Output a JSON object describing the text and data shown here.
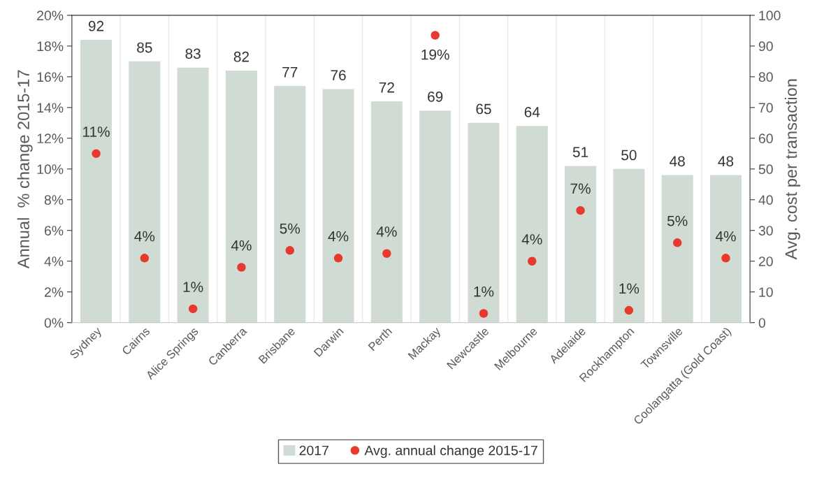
{
  "chart_data": {
    "type": "bar",
    "categories": [
      "Sydney",
      "Cairns",
      "Alice Springs",
      "Canberra",
      "Brisbane",
      "Darwin",
      "Perth",
      "Mackay",
      "Newcastle",
      "Melbourne",
      "Adelaide",
      "Rockhampton",
      "Townsville",
      "Coolangatta (Gold Coast)"
    ],
    "ylabel": "Annual  % change 2015-17",
    "y2label": "Avg. cost per transaction",
    "series": [
      {
        "name": "2017",
        "axis": "y2",
        "color": "#d0dcd3",
        "values": [
          92,
          85,
          83,
          82,
          77,
          76,
          72,
          69,
          65,
          64,
          51,
          50,
          48,
          48
        ],
        "value_labels": [
          "92",
          "85",
          "83",
          "82",
          "77",
          "76",
          "72",
          "69",
          "65",
          "64",
          "51",
          "50",
          "48",
          "48"
        ]
      },
      {
        "name": "Avg. annual change 2015-17",
        "type": "scatter",
        "axis": "y",
        "color": "#e8392f",
        "marker": "circle",
        "values": [
          11.0,
          4.2,
          0.9,
          3.6,
          4.7,
          4.2,
          4.5,
          18.7,
          0.6,
          4.0,
          7.3,
          0.8,
          5.2,
          4.2
        ],
        "value_labels": [
          "11%",
          "4%",
          "1%",
          "4%",
          "5%",
          "4%",
          "4%",
          "19%",
          "1%",
          "4%",
          "7%",
          "1%",
          "5%",
          "4%"
        ]
      }
    ],
    "ylim": [
      0,
      20
    ],
    "yticks": [
      {
        "value": 0,
        "label": "0%"
      },
      {
        "value": 2,
        "label": "2%"
      },
      {
        "value": 4,
        "label": "4%"
      },
      {
        "value": 6,
        "label": "6%"
      },
      {
        "value": 8,
        "label": "8%"
      },
      {
        "value": 10,
        "label": "10%"
      },
      {
        "value": 12,
        "label": "12%"
      },
      {
        "value": 14,
        "label": "14%"
      },
      {
        "value": 16,
        "label": "16%"
      },
      {
        "value": 18,
        "label": "18%"
      },
      {
        "value": 20,
        "label": "20%"
      }
    ],
    "y2lim": [
      0,
      100
    ],
    "y2ticks": [
      0,
      10,
      20,
      30,
      40,
      50,
      60,
      70,
      80,
      90,
      100
    ],
    "grid": "x",
    "legend": "bottom"
  }
}
